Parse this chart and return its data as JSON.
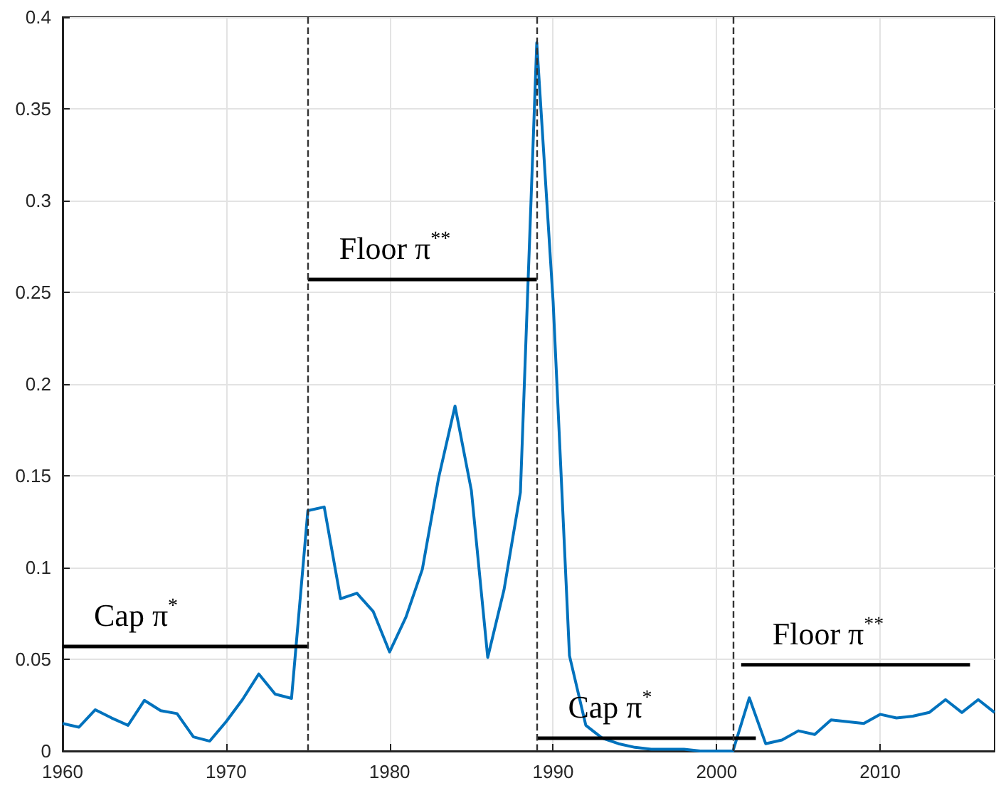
{
  "chart_data": {
    "type": "line",
    "x": [
      1960,
      1961,
      1962,
      1963,
      1964,
      1965,
      1966,
      1967,
      1968,
      1969,
      1970,
      1971,
      1972,
      1973,
      1974,
      1975,
      1976,
      1977,
      1978,
      1979,
      1980,
      1981,
      1982,
      1983,
      1984,
      1985,
      1986,
      1987,
      1988,
      1989,
      1990,
      1991,
      1992,
      1993,
      1994,
      1995,
      1996,
      1997,
      1998,
      1999,
      2000,
      2001,
      2002,
      2003,
      2004,
      2005,
      2006,
      2007,
      2008,
      2009,
      2010,
      2011,
      2012,
      2013,
      2014,
      2015,
      2016,
      2017
    ],
    "series": [
      {
        "color": "#0072bd",
        "values": [
          0.015,
          0.013,
          0.0225,
          0.018,
          0.014,
          0.0276,
          0.022,
          0.0204,
          0.0077,
          0.0054,
          0.016,
          0.028,
          0.042,
          0.031,
          0.0287,
          0.131,
          0.133,
          0.083,
          0.086,
          0.076,
          0.054,
          0.073,
          0.099,
          0.149,
          0.188,
          0.142,
          0.051,
          0.088,
          0.141,
          0.386,
          0.245,
          0.052,
          0.014,
          0.007,
          0.004,
          0.002,
          0.001,
          0.001,
          0.001,
          0.0,
          0.0,
          0.0,
          0.029,
          0.004,
          0.006,
          0.011,
          0.009,
          0.017,
          0.016,
          0.015,
          0.02,
          0.018,
          0.019,
          0.021,
          0.028,
          0.021,
          0.028,
          0.021
        ]
      },
      {
        "name": "Cap π$^{*}$",
        "color": "#000000",
        "x": [
          1960,
          1975
        ],
        "values": [
          0.057,
          0.057
        ]
      },
      {
        "name": "Floor π$^{**}$",
        "color": "#000000",
        "x": [
          1975,
          1989
        ],
        "values": [
          0.257,
          0.257
        ]
      },
      {
        "name": "Cap π$^{*}$",
        "color": "#000000",
        "x": [
          1989,
          2002.4
        ],
        "values": [
          0.007,
          0.007
        ]
      },
      {
        "name": "Floor π$^{**}$",
        "color": "#000000",
        "x": [
          2001.5,
          2015.5
        ],
        "values": [
          0.047,
          0.047
        ]
      }
    ],
    "xlim": [
      1960,
      2017
    ],
    "xticks": [
      1960,
      1970,
      1980,
      1990,
      2000,
      2010
    ],
    "ylim": [
      0,
      0.4
    ],
    "yticks": [
      0,
      0.05,
      0.1,
      0.15,
      0.2,
      0.25,
      0.3,
      0.35,
      0.4
    ],
    "ref_lines": [
      {
        "axis": "x",
        "value": 1975,
        "color": "#333333",
        "line_style": "dashed"
      },
      {
        "axis": "x",
        "value": 1989,
        "color": "#333333",
        "line_style": "dashed"
      },
      {
        "axis": "x",
        "value": 2001,
        "color": "#333333",
        "line_style": "dashed"
      }
    ],
    "grid": true,
    "legend": false,
    "marker": "none",
    "line_style": "solid"
  }
}
